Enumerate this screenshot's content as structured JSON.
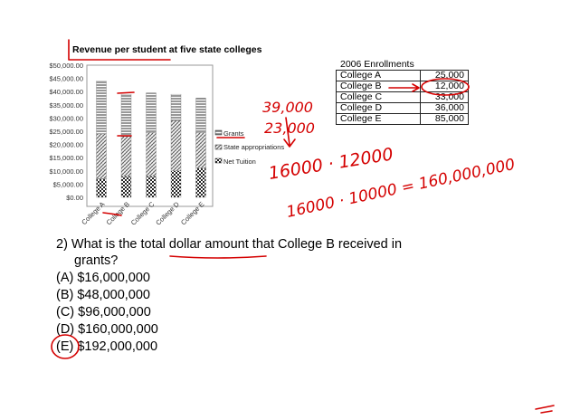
{
  "chart_data": {
    "type": "bar",
    "title": "Revenue per student at five state colleges",
    "categories": [
      "College A",
      "College B",
      "College C",
      "College D",
      "College E"
    ],
    "y_ticks": [
      "$50,000.00",
      "$45,000.00",
      "$40,000.00",
      "$35,000.00",
      "$30,000.00",
      "$25,000.00",
      "$20,000.00",
      "$15,000.00",
      "$10,000.00",
      "$5,000.00",
      "$0.00"
    ],
    "ylim": [
      0,
      50000
    ],
    "legend_position": "right",
    "series": [
      {
        "name": "Net Tuition",
        "values": [
          7000,
          8000,
          8000,
          10000,
          11000
        ]
      },
      {
        "name": "State appropriations",
        "values": [
          17000,
          15000,
          16500,
          19000,
          13500
        ]
      },
      {
        "name": "Grants",
        "values": [
          20000,
          16000,
          15000,
          10000,
          13000
        ]
      }
    ]
  },
  "enrollments": {
    "title": "2006 Enrollments",
    "rows": [
      {
        "name": "College A",
        "value": "25,000"
      },
      {
        "name": "College B",
        "value": "12,000"
      },
      {
        "name": "College C",
        "value": "33,000"
      },
      {
        "name": "College D",
        "value": "36,000"
      },
      {
        "name": "College E",
        "value": "85,000"
      }
    ]
  },
  "question": {
    "line1": "2) What is the total dollar amount that College B received in",
    "line2": "grants?",
    "options": [
      "(A) $16,000,000",
      "(B) $48,000,000",
      "(C) $96,000,000",
      "(D) $160,000,000",
      "(E) $192,000,000"
    ]
  },
  "annotations": {
    "a1": "39,000",
    "a2": "23,000",
    "a3": "16000 · 12000",
    "a4": "16000 · 10000 = 160,000,000"
  }
}
